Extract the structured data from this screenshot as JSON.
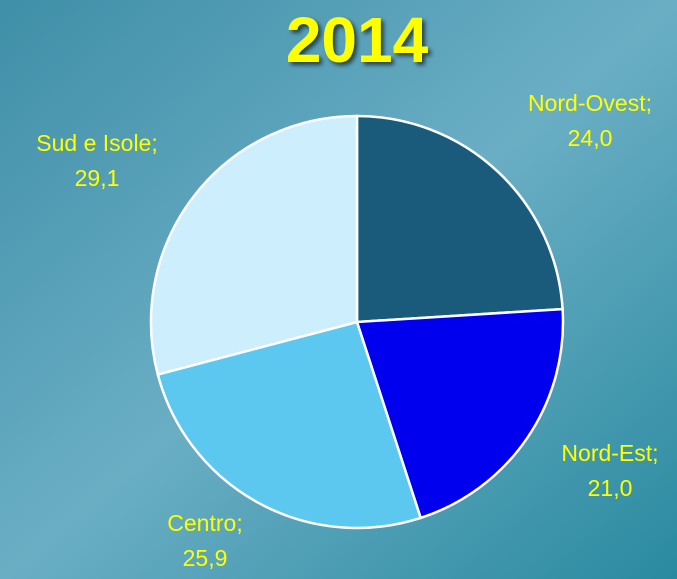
{
  "chart_data": {
    "type": "pie",
    "title": "2014",
    "categories": [
      "Nord-Ovest;",
      "Nord-Est;",
      "Centro;",
      "Sud e Isole;"
    ],
    "values": [
      24.0,
      21.0,
      25.9,
      29.1
    ],
    "value_labels": [
      "24,0",
      "21,0",
      "25,9",
      "29,1"
    ],
    "colors": [
      "#1a5b7b",
      "#0000ee",
      "#5cc8f0",
      "#cdeefc"
    ]
  }
}
